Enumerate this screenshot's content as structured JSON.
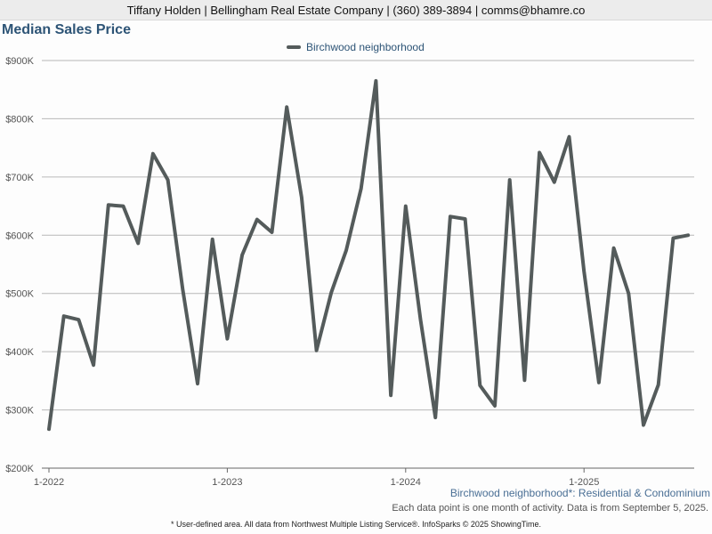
{
  "header": {
    "contact": "Tiffany Holden | Bellingham Real Estate Company | (360) 389-3894 | comms@bhamre.co"
  },
  "chart_data": {
    "type": "line",
    "title": "Median Sales Price",
    "xlabel": "",
    "ylabel": "",
    "ylim": [
      200000,
      900000
    ],
    "grid": true,
    "legend_placement": "top-center",
    "y_ticks": [
      {
        "value": 200000,
        "label": "$200K"
      },
      {
        "value": 300000,
        "label": "$300K"
      },
      {
        "value": 400000,
        "label": "$400K"
      },
      {
        "value": 500000,
        "label": "$500K"
      },
      {
        "value": 600000,
        "label": "$600K"
      },
      {
        "value": 700000,
        "label": "$700K"
      },
      {
        "value": 800000,
        "label": "$800K"
      },
      {
        "value": 900000,
        "label": "$900K"
      }
    ],
    "x_ticks": [
      {
        "value": "2022-01",
        "label": "1-2022"
      },
      {
        "value": "2023-01",
        "label": "1-2023"
      },
      {
        "value": "2024-01",
        "label": "1-2024"
      },
      {
        "value": "2025-01",
        "label": "1-2025"
      }
    ],
    "x": [
      "2022-01",
      "2022-02",
      "2022-03",
      "2022-04",
      "2022-05",
      "2022-06",
      "2022-07",
      "2022-08",
      "2022-09",
      "2022-10",
      "2022-11",
      "2022-12",
      "2023-01",
      "2023-02",
      "2023-03",
      "2023-04",
      "2023-05",
      "2023-06",
      "2023-07",
      "2023-08",
      "2023-09",
      "2023-10",
      "2023-11",
      "2023-12",
      "2024-01",
      "2024-02",
      "2024-03",
      "2024-04",
      "2024-05",
      "2024-06",
      "2024-07",
      "2024-08",
      "2024-09",
      "2024-10",
      "2024-11",
      "2024-12",
      "2025-01",
      "2025-02",
      "2025-03",
      "2025-04",
      "2025-05",
      "2025-06",
      "2025-07",
      "2025-08"
    ],
    "series": [
      {
        "name": "Birchwood neighborhood",
        "color": "#545b5b",
        "values": [
          267000,
          461000,
          455000,
          377000,
          652000,
          650000,
          586000,
          740000,
          695000,
          507000,
          345000,
          593000,
          422000,
          566000,
          627000,
          605000,
          820000,
          665000,
          402000,
          502000,
          574000,
          680000,
          865000,
          325000,
          650000,
          455000,
          287000,
          632000,
          628000,
          342000,
          307000,
          695000,
          351000,
          742000,
          691000,
          769000,
          538000,
          347000,
          578000,
          500000,
          274000,
          343000,
          595000,
          600000
        ]
      }
    ]
  },
  "subtitle": "Birchwood neighborhood*: Residential & Condominium",
  "note": "Each data point is one month of activity. Data is from September 5, 2025.",
  "footer": "* User-defined area. All data from Northwest Multiple Listing Service®. InfoSparks © 2025 ShowingTime."
}
